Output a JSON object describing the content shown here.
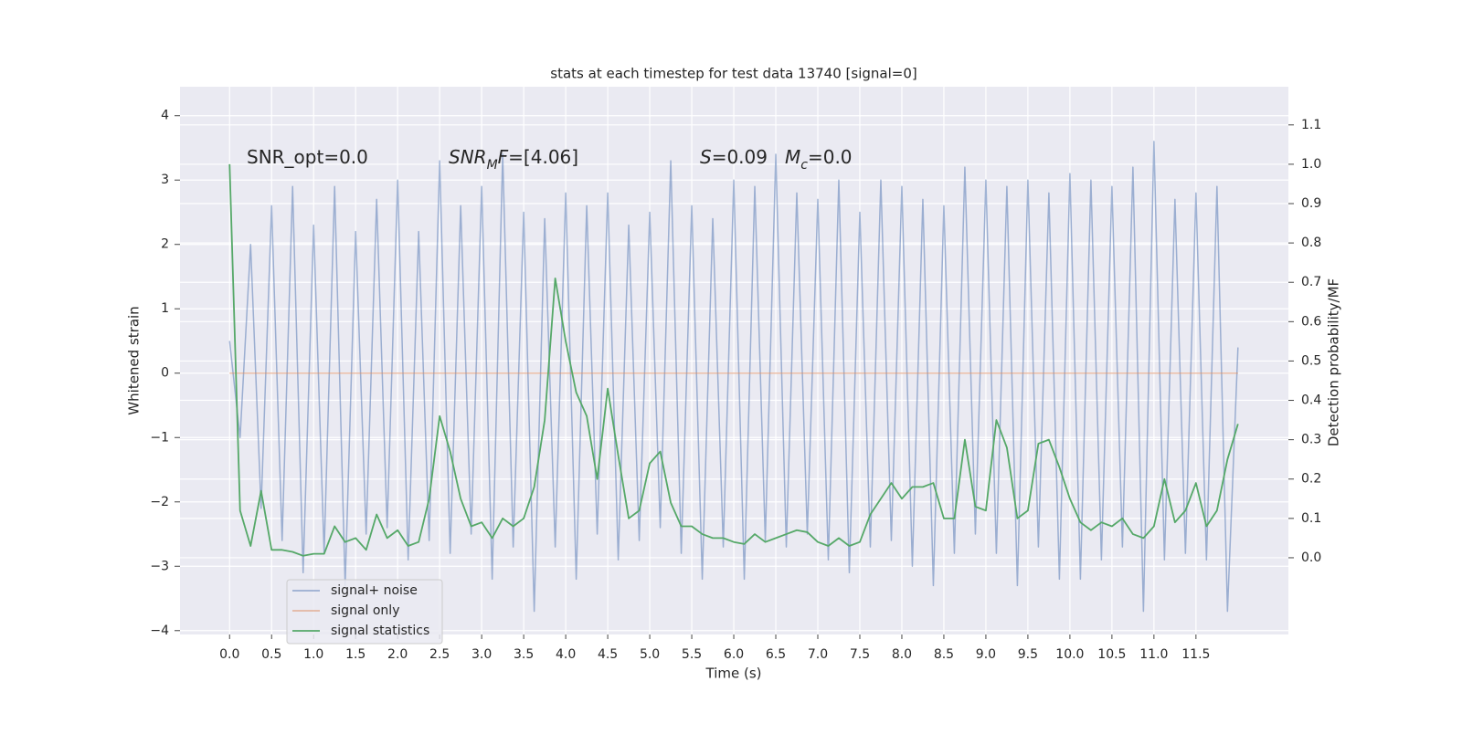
{
  "chart_data": {
    "type": "line",
    "title": "stats at each timestep for test data 13740 [signal=0]",
    "x_label": "Time (s)",
    "y_label": "Whitened strain",
    "y2_label": "Detection probability/MF",
    "grid": true,
    "legend": "lower left",
    "xlim": [
      -0.59,
      12.6
    ],
    "ylim": [
      -4.06,
      4.45
    ],
    "y2lim": [
      -0.195,
      1.197
    ],
    "xticks": [
      {
        "value": 0,
        "label": "0.0"
      },
      0.5,
      {
        "value": 1,
        "label": "1.0"
      },
      1.5,
      {
        "value": 2,
        "label": "2.0"
      },
      2.5,
      {
        "value": 3,
        "label": "3.0"
      },
      3.5,
      {
        "value": 4,
        "label": "4.0"
      },
      4.5,
      {
        "value": 5,
        "label": "5.0"
      },
      5.5,
      {
        "value": 6,
        "label": "6.0"
      },
      6.5,
      {
        "value": 7,
        "label": "7.0"
      },
      7.5,
      {
        "value": 8,
        "label": "8.0"
      },
      8.5,
      {
        "value": 9,
        "label": "9.0"
      },
      9.5,
      {
        "value": 10,
        "label": "10.0"
      },
      10.5,
      {
        "value": 11,
        "label": "11.0"
      },
      11.5
    ],
    "yticks": [
      {
        "value": -4,
        "label": "−4"
      },
      {
        "value": -3,
        "label": "−3"
      },
      {
        "value": -2,
        "label": "−2"
      },
      {
        "value": -1,
        "label": "−1"
      },
      0,
      1,
      2,
      3,
      4
    ],
    "y2ticks": [
      {
        "value": 0,
        "label": "0.0"
      },
      0.1,
      0.2,
      0.3,
      0.4,
      0.5,
      0.6,
      0.7,
      0.8,
      0.9,
      {
        "value": 1,
        "label": "1.0"
      },
      1.1
    ],
    "x": [
      0,
      0.125,
      0.25,
      0.375,
      0.5,
      0.625,
      0.75,
      0.875,
      1,
      1.125,
      1.25,
      1.375,
      1.5,
      1.625,
      1.75,
      1.875,
      2,
      2.125,
      2.25,
      2.375,
      2.5,
      2.625,
      2.75,
      2.875,
      3,
      3.125,
      3.25,
      3.375,
      3.5,
      3.625,
      3.75,
      3.875,
      4,
      4.125,
      4.25,
      4.375,
      4.5,
      4.625,
      4.75,
      4.875,
      5,
      5.125,
      5.25,
      5.375,
      5.5,
      5.625,
      5.75,
      5.875,
      6,
      6.125,
      6.25,
      6.375,
      6.5,
      6.625,
      6.75,
      6.875,
      7,
      7.125,
      7.25,
      7.375,
      7.5,
      7.625,
      7.75,
      7.875,
      8,
      8.125,
      8.25,
      8.375,
      8.5,
      8.625,
      8.75,
      8.875,
      9,
      9.125,
      9.25,
      9.375,
      9.5,
      9.625,
      9.75,
      9.875,
      10,
      10.125,
      10.25,
      10.375,
      10.5,
      10.625,
      10.75,
      10.875,
      11,
      11.125,
      11.25,
      11.375,
      11.5,
      11.625,
      11.75,
      11.875,
      12
    ],
    "series": [
      {
        "name": "signal+ noise",
        "color": "#4c72b0",
        "alpha": 0.5,
        "values": [
          0.5,
          -1.0,
          2.0,
          -2.1,
          2.6,
          -2.6,
          2.9,
          -3.1,
          2.3,
          -2.8,
          2.9,
          -3.3,
          2.2,
          -2.5,
          2.7,
          -2.4,
          3.0,
          -2.9,
          2.2,
          -2.6,
          3.3,
          -2.8,
          2.6,
          -2.5,
          2.9,
          -3.2,
          3.4,
          -2.7,
          2.5,
          -3.7,
          2.4,
          -2.7,
          2.8,
          -3.2,
          2.6,
          -2.5,
          2.8,
          -2.9,
          2.3,
          -2.6,
          2.5,
          -2.4,
          3.3,
          -2.8,
          2.6,
          -3.2,
          2.4,
          -2.7,
          3.0,
          -3.2,
          2.9,
          -2.6,
          3.4,
          -2.7,
          2.8,
          -2.5,
          2.7,
          -2.9,
          3.0,
          -3.1,
          2.5,
          -2.7,
          3.0,
          -2.6,
          2.9,
          -3.0,
          2.7,
          -3.3,
          2.6,
          -2.8,
          3.2,
          -2.5,
          3.0,
          -2.8,
          2.9,
          -3.3,
          3.0,
          -2.7,
          2.8,
          -3.2,
          3.1,
          -3.2,
          3.0,
          -2.9,
          2.9,
          -2.7,
          3.2,
          -3.7,
          3.6,
          -2.9,
          2.7,
          -2.8,
          2.8,
          -2.9,
          2.9,
          -3.7,
          0.4
        ]
      },
      {
        "name": "signal only",
        "color": "#dd8452",
        "alpha": 0.5,
        "x": [
          0,
          12
        ],
        "values": [
          0,
          0
        ]
      },
      {
        "name": "signal statistics",
        "color": "#55a868",
        "alpha": 1,
        "axis": "y2",
        "values": [
          1.0,
          0.12,
          0.03,
          0.17,
          0.02,
          0.02,
          0.015,
          0.005,
          0.01,
          0.01,
          0.08,
          0.04,
          0.05,
          0.02,
          0.11,
          0.05,
          0.07,
          0.03,
          0.04,
          0.15,
          0.36,
          0.27,
          0.15,
          0.08,
          0.09,
          0.05,
          0.1,
          0.08,
          0.1,
          0.18,
          0.35,
          0.71,
          0.55,
          0.42,
          0.36,
          0.2,
          0.43,
          0.26,
          0.1,
          0.12,
          0.24,
          0.27,
          0.14,
          0.08,
          0.08,
          0.06,
          0.05,
          0.05,
          0.04,
          0.035,
          0.06,
          0.04,
          0.05,
          0.06,
          0.07,
          0.065,
          0.04,
          0.03,
          0.05,
          0.03,
          0.04,
          0.11,
          0.15,
          0.19,
          0.15,
          0.18,
          0.18,
          0.19,
          0.1,
          0.1,
          0.3,
          0.13,
          0.12,
          0.35,
          0.28,
          0.1,
          0.12,
          0.29,
          0.3,
          0.23,
          0.15,
          0.09,
          0.07,
          0.09,
          0.08,
          0.1,
          0.06,
          0.05,
          0.08,
          0.2,
          0.09,
          0.12,
          0.19,
          0.08,
          0.12,
          0.25,
          0.34
        ]
      }
    ],
    "annotations": [
      [
        {
          "text": "SNR_opt=0.0",
          "style": "normal"
        }
      ],
      [
        {
          "text": "SNR",
          "style": "italic"
        },
        {
          "text": "M",
          "style": "sub"
        },
        {
          "text": "F",
          "style": "italic"
        },
        {
          "text": "=[4.06]",
          "style": "normal"
        }
      ],
      [
        {
          "text": "S",
          "style": "italic"
        },
        {
          "text": "=0.09",
          "style": "normal"
        }
      ],
      [
        {
          "text": "M",
          "style": "italic"
        },
        {
          "text": "c",
          "style": "sub"
        },
        {
          "text": "=0.0",
          "style": "normal"
        }
      ]
    ]
  }
}
